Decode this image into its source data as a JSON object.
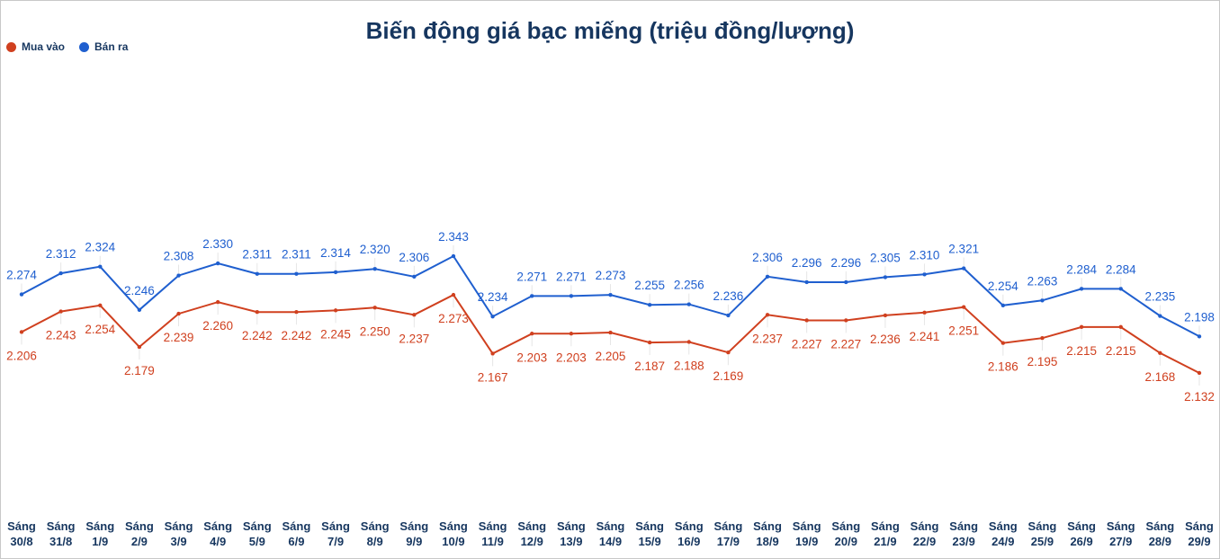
{
  "chart_data": {
    "type": "line",
    "title": "Biến động giá bạc miếng (triệu đồng/lượng)",
    "categories": [
      "Sáng 30/8",
      "Sáng 31/8",
      "Sáng 1/9",
      "Sáng 2/9",
      "Sáng 3/9",
      "Sáng 4/9",
      "Sáng 5/9",
      "Sáng 6/9",
      "Sáng 7/9",
      "Sáng 8/9",
      "Sáng 9/9",
      "Sáng 10/9",
      "Sáng 11/9",
      "Sáng 12/9",
      "Sáng 13/9",
      "Sáng 14/9",
      "Sáng 15/9",
      "Sáng 16/9",
      "Sáng 17/9",
      "Sáng 18/9",
      "Sáng 19/9",
      "Sáng 20/9",
      "Sáng 21/9",
      "Sáng 22/9",
      "Sáng 23/9",
      "Sáng 24/9",
      "Sáng 25/9",
      "Sáng 26/9",
      "Sáng 27/9",
      "Sáng 28/9",
      "Sáng 29/9"
    ],
    "series": [
      {
        "name": "Mua vào",
        "color": "#d0401f",
        "values": [
          2.206,
          2.243,
          2.254,
          2.179,
          2.239,
          2.26,
          2.242,
          2.242,
          2.245,
          2.25,
          2.237,
          2.273,
          2.167,
          2.203,
          2.203,
          2.205,
          2.187,
          2.188,
          2.169,
          2.237,
          2.227,
          2.227,
          2.236,
          2.241,
          2.251,
          2.186,
          2.195,
          2.215,
          2.215,
          2.168,
          2.132
        ],
        "value_labels": [
          "2.206",
          "2.243",
          "2.254",
          "2.179",
          "2.239",
          "2.260",
          "2.242",
          "2.242",
          "2.245",
          "2.250",
          "2.237",
          "2.273",
          "2.167",
          "2.203",
          "2.203",
          "2.205",
          "2.187",
          "2.188",
          "2.169",
          "2.237",
          "2.227",
          "2.227",
          "2.236",
          "2.241",
          "2.251",
          "2.186",
          "2.195",
          "2.215",
          "2.215",
          "2.168",
          "2.132"
        ]
      },
      {
        "name": "Bán ra",
        "color": "#1f5fcf",
        "values": [
          2.274,
          2.312,
          2.324,
          2.246,
          2.308,
          2.33,
          2.311,
          2.311,
          2.314,
          2.32,
          2.306,
          2.343,
          2.234,
          2.271,
          2.271,
          2.273,
          2.255,
          2.256,
          2.236,
          2.306,
          2.296,
          2.296,
          2.305,
          2.31,
          2.321,
          2.254,
          2.263,
          2.284,
          2.284,
          2.235,
          2.198
        ],
        "value_labels": [
          "2.274",
          "2.312",
          "2.324",
          "2.246",
          "2.308",
          "2.330",
          "2.311",
          "2.311",
          "2.314",
          "2.320",
          "2.306",
          "2.343",
          "2.234",
          "2.271",
          "2.271",
          "2.273",
          "2.255",
          "2.256",
          "2.236",
          "2.306",
          "2.296",
          "2.296",
          "2.305",
          "2.310",
          "2.321",
          "2.254",
          "2.263",
          "2.284",
          "2.284",
          "2.235",
          "2.198"
        ]
      }
    ]
  }
}
